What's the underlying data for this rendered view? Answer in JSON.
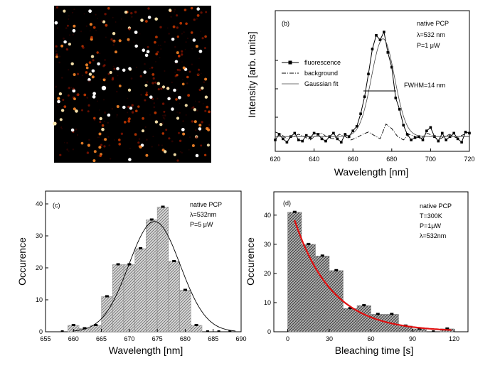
{
  "panel_a": {
    "image_alt_description_hidden": "",
    "colormap": [
      "#000000",
      "#3a0300",
      "#8a1400",
      "#d33b00",
      "#ff8a2a",
      "#ffe9b0",
      "#ffffff"
    ]
  },
  "chart_data": [
    {
      "panel": "(b)",
      "type": "line",
      "xlabel": "Wavelength [nm]",
      "ylabel": "Intensity [arb. units]",
      "xlim": [
        620,
        720
      ],
      "ylim": [
        0,
        1
      ],
      "xticks": [
        620,
        640,
        660,
        680,
        700,
        720
      ],
      "notes": [
        "native PCP",
        "λ=532 nm",
        "P=1 μW"
      ],
      "annotation": "FWHM=14 nm",
      "legend": [
        "fluorescence",
        "background",
        "Gaussian fit"
      ],
      "legend_position": "left",
      "series": [
        {
          "name": "fluorescence",
          "x": [
            620,
            622,
            624,
            626,
            628,
            630,
            632,
            634,
            636,
            638,
            640,
            642,
            644,
            646,
            648,
            650,
            652,
            654,
            656,
            658,
            660,
            662,
            664,
            666,
            668,
            670,
            672,
            674,
            676,
            678,
            680,
            682,
            684,
            686,
            688,
            690,
            692,
            694,
            696,
            698,
            700,
            702,
            704,
            706,
            708,
            710,
            712,
            714,
            716,
            718,
            720
          ],
          "y": [
            0.05,
            0.1,
            0.06,
            0.03,
            0.08,
            0.11,
            0.05,
            0.04,
            0.09,
            0.07,
            0.11,
            0.1,
            0.06,
            0.04,
            0.08,
            0.11,
            0.06,
            0.03,
            0.1,
            0.08,
            0.13,
            0.17,
            0.28,
            0.43,
            0.63,
            0.85,
            0.97,
            0.93,
            1.0,
            0.82,
            0.69,
            0.42,
            0.32,
            0.18,
            0.1,
            0.05,
            0.07,
            0.08,
            0.05,
            0.13,
            0.16,
            0.08,
            0.04,
            0.11,
            0.05,
            0.08,
            0.11,
            0.06,
            0.03,
            0.12,
            0.11
          ]
        },
        {
          "name": "background",
          "x": [
            620,
            623,
            626,
            629,
            632,
            635,
            638,
            641,
            644,
            647,
            650,
            653,
            656,
            659,
            662,
            665,
            668,
            671,
            674,
            677,
            680,
            683,
            686,
            689,
            692,
            695,
            698,
            701,
            704,
            707,
            710,
            713,
            716,
            719
          ],
          "y": [
            0.12,
            0.1,
            0.06,
            0.08,
            0.1,
            0.08,
            0.05,
            0.09,
            0.11,
            0.07,
            0.06,
            0.1,
            0.08,
            0.05,
            0.07,
            0.1,
            0.12,
            0.09,
            0.06,
            0.19,
            0.15,
            0.08,
            0.05,
            0.1,
            0.08,
            0.06,
            0.11,
            0.09,
            0.05,
            0.08,
            0.1,
            0.07,
            0.09,
            0.11
          ]
        },
        {
          "name": "Gaussian fit",
          "center": 675.5,
          "sigma": 5.95,
          "amplitude": 0.86,
          "offset": 0.08
        }
      ]
    },
    {
      "panel": "(c)",
      "type": "bar",
      "xlabel": "Wavelength [nm]",
      "ylabel": "Occurence",
      "xlim": [
        655,
        690
      ],
      "ylim": [
        0,
        44
      ],
      "xticks": [
        655,
        660,
        665,
        670,
        675,
        680,
        685,
        690
      ],
      "yticks": [
        0,
        10,
        20,
        30,
        40
      ],
      "notes": [
        "native PCP",
        "λ=532nm",
        "P=5 μW"
      ],
      "bins": [
        {
          "x": 658,
          "value": 0
        },
        {
          "x": 660,
          "value": 2
        },
        {
          "x": 662,
          "value": 1
        },
        {
          "x": 664,
          "value": 2
        },
        {
          "x": 666,
          "value": 11
        },
        {
          "x": 668,
          "value": 21
        },
        {
          "x": 670,
          "value": 21
        },
        {
          "x": 672,
          "value": 26
        },
        {
          "x": 674,
          "value": 35
        },
        {
          "x": 676,
          "value": 39
        },
        {
          "x": 678,
          "value": 22
        },
        {
          "x": 680,
          "value": 13
        },
        {
          "x": 682,
          "value": 2
        },
        {
          "x": 684,
          "value": 0
        },
        {
          "x": 686,
          "value": 0
        },
        {
          "x": 688,
          "value": 0
        }
      ],
      "fit": {
        "center": 674.5,
        "sigma": 4.6,
        "amplitude": 34.5
      }
    },
    {
      "panel": "(d)",
      "type": "bar",
      "xlabel": "Bleaching time [s]",
      "ylabel": "Occurence",
      "xlim": [
        -10,
        130
      ],
      "ylim": [
        0,
        48
      ],
      "xticks": [
        0,
        30,
        60,
        90,
        120
      ],
      "yticks": [
        0,
        10,
        20,
        30,
        40
      ],
      "notes": [
        "native PCP",
        "T=300K",
        "P=1μW",
        "λ=532nm"
      ],
      "bin_width": 10,
      "bins": [
        {
          "x": 5,
          "value": 41
        },
        {
          "x": 15,
          "value": 30
        },
        {
          "x": 25,
          "value": 26
        },
        {
          "x": 35,
          "value": 21
        },
        {
          "x": 45,
          "value": 8
        },
        {
          "x": 55,
          "value": 9
        },
        {
          "x": 65,
          "value": 6
        },
        {
          "x": 75,
          "value": 6
        },
        {
          "x": 85,
          "value": 2
        },
        {
          "x": 95,
          "value": 1
        },
        {
          "x": 105,
          "value": 0
        },
        {
          "x": 115,
          "value": 1
        }
      ],
      "fit": {
        "type": "exponential",
        "amplitude": 46,
        "tau": 27,
        "x_start": 5,
        "x_end": 118,
        "color": "#e01010"
      }
    }
  ]
}
